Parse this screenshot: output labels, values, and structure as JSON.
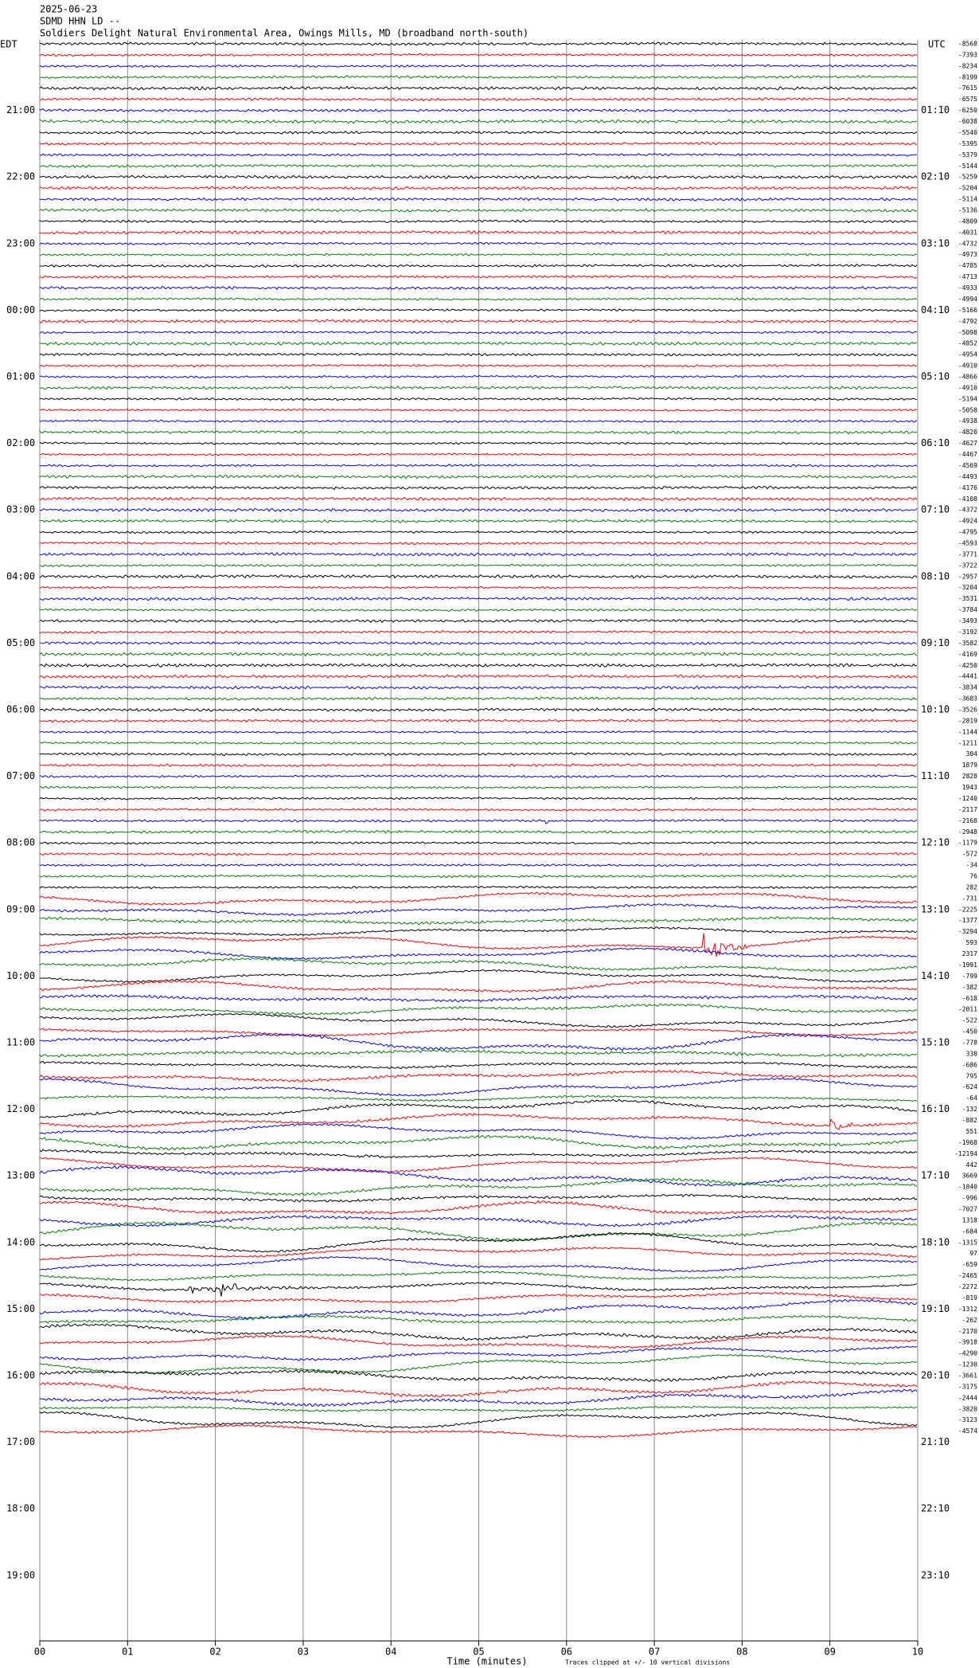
{
  "chart_data": {
    "type": "helicorder",
    "date": "2025-06-23",
    "station": "SDMD HHN LD --",
    "title": "Soldiers Delight Natural Environmental Area, Owings Mills, MD (broadband north-south)",
    "left_label": "EDT",
    "right_label": "UTC",
    "xlabel": "Time (minutes)",
    "note": "Traces clipped at +/- 10 vertical divisions",
    "xlim": [
      0,
      10
    ],
    "xticks": [
      {
        "value": 0,
        "label": "00"
      },
      {
        "value": 1,
        "label": "01"
      },
      {
        "value": 2,
        "label": "02"
      },
      {
        "value": 3,
        "label": "03"
      },
      {
        "value": 4,
        "label": "04"
      },
      {
        "value": 5,
        "label": "05"
      },
      {
        "value": 6,
        "label": "06"
      },
      {
        "value": 7,
        "label": "07"
      },
      {
        "value": 8,
        "label": "08"
      },
      {
        "value": 9,
        "label": "09"
      },
      {
        "value": 10,
        "label": "10"
      }
    ],
    "edt_hours": [
      "21:00",
      "22:00",
      "23:00",
      "00:00",
      "01:00",
      "02:00",
      "03:00",
      "04:00",
      "05:00",
      "06:00",
      "07:00",
      "08:00",
      "09:00",
      "10:00",
      "11:00",
      "12:00",
      "13:00",
      "14:00",
      "15:00",
      "16:00",
      "17:00",
      "18:00",
      "19:00"
    ],
    "utc_hours": [
      "01:10",
      "02:10",
      "03:10",
      "04:10",
      "05:10",
      "06:10",
      "07:10",
      "08:10",
      "09:10",
      "10:10",
      "11:10",
      "12:10",
      "13:10",
      "14:10",
      "15:10",
      "16:10",
      "17:10",
      "18:10",
      "19:10",
      "20:10",
      "21:10",
      "22:10",
      "23:10"
    ],
    "colors": [
      "#000000",
      "#ff0000",
      "#0000ff",
      "#008000"
    ],
    "trace_offsets": [
      -8568,
      -7393,
      -8234,
      -8199,
      -7615,
      -6575,
      -6250,
      -6038,
      -5540,
      -5395,
      -5379,
      -5144,
      -5259,
      -5204,
      -5114,
      -5136,
      -4809,
      -4031,
      -4732,
      -4973,
      -4785,
      -4713,
      -4933,
      -4994,
      -5166,
      -4792,
      -5098,
      -4852,
      -4954,
      -4910,
      -4866,
      -4910,
      -5194,
      -5058,
      -4938,
      -4820,
      -4627,
      -4467,
      -4569,
      -4493,
      -4176,
      -4108,
      -4372,
      -4924,
      -4795,
      -4593,
      -3771,
      -3722,
      -2957,
      -3204,
      -3531,
      -3784,
      -3493,
      -3192,
      -3582,
      -4169,
      -4250,
      -4441,
      -3834,
      -3683,
      -3526,
      -2819,
      -1144,
      -1211,
      304,
      1879,
      2828,
      1943,
      -1240,
      -2117,
      -2168,
      -2948,
      -1179,
      -572,
      -34,
      76,
      282,
      -731,
      -2225,
      -1377,
      -3294,
      593,
      2317,
      -1991,
      -799,
      -382,
      -618,
      -2011,
      -522,
      -450,
      -778,
      338,
      -686,
      795,
      -624,
      -64,
      -132,
      -882,
      551,
      -1968,
      -12194,
      442,
      3669,
      -1840,
      -996,
      -7027,
      1318,
      -684,
      -1315,
      97,
      -659,
      -2465,
      -2272,
      -819,
      -1312,
      -262,
      -2170,
      -3918,
      -4290,
      -1230,
      -3661,
      -3175,
      -2444,
      -3820,
      -3123,
      -4574
    ]
  }
}
